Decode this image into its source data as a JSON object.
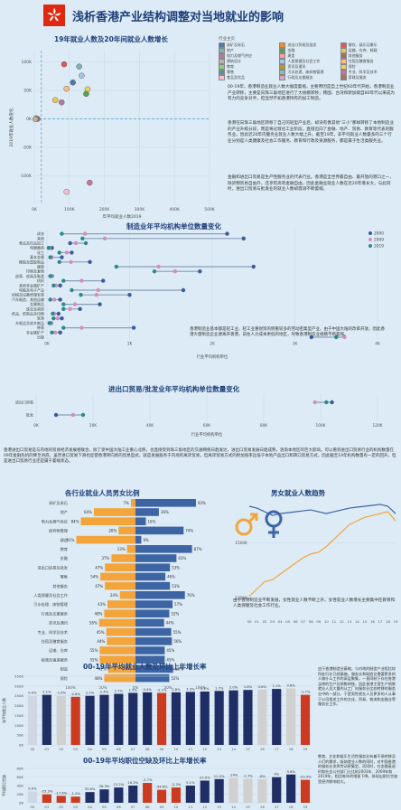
{
  "page": {
    "title": "浅析香港产业结构调整对当地就业的影响"
  },
  "sections": {
    "scatter": {
      "title": "19年就业人数及20年间就业人数增长"
    },
    "mfg": {
      "title": "制造业年平均机构单位数量变化"
    },
    "trade": {
      "title": "进出口贸易/批发业年平均机构单位数量变化"
    },
    "gender_bar": {
      "title": "各行业就业人员男女比例"
    },
    "male_trend": {
      "title": "男女就业人数趋势"
    },
    "employment": {
      "title": "00-19年平均就业人数及环比上年增长率"
    },
    "vacancy": {
      "title": "00-19年平均职位空缺及环比上年增长率"
    }
  },
  "texts": {
    "p1": "00-19年，香港制造业就业人数大幅度萎缩，主要原因是自上世纪60年代开始，香港制造业产业转移，主要是向珠三角地区进行了大规模转移；韩国、台湾和新加坡自80年代以来成为有力的竞争对手，但显然不如香港持有的加工制造。",
    "p2": "香港在向珠三角地区转移了自己的轻型产业后，却没有像其他“三小”那样转移了本地制造业的产业升级分段，而是将过渡化工业阶段，直接迈向了金融、地产、贸易、教育等代表的服务业。因此近20年内服务业就业人数大幅上升。截至19年，非平均就业人数最多的三个行业分别是人类健康及社会工作服务、教育和行政及资源服务，都是属于生活类服务业。",
    "p3": "金融和进出口贸易是生产性服务业的代表行业。香港是全世界最自由、最开放的港口之一，除货物贸易自由外，还享有高有金融自由，因此金融业就业人数在近20年增长大，与此同时，进出口贸易与批发业的就业人数却骤减不断萎缩。",
    "p4": "香港制造业基本都是轻工业，轻工业重财贸的侧重较多的劳动密集型产业。由于中国大陆的改革开放，因此香港大量制造企业便离开香港，前往人力成本更低的地区，导致香港制造业规模不断萎缩。",
    "p5": "香港进出口贸易是与内地的贸易经济发展相联合，除了受中国大陆工业重心北移，也直接受到珠三角地区的交通网络日趋发达，进出口贸易发展日趋成熟，逐渐本地区的巨大影响。可以看到进出口贸易行业的机构数量在09年金融危机的降至谷底，虽然进口贸易下滑也促使香港转向新的贸易型式，就是发展服务于内地的离岸贸易，但离岸贸易方式的附加值率远低于本地产品出口和转口贸易方式，因此截至19年机构数量有一定的回升，但是进出口贸易行业还是属于萎缩状态。",
    "p6": "由于香港制造业不断发展，女性就业人数不断上升。女性就业人数增长主要集中在教育和人类保健及社会工作行业。",
    "p7": "由于香港制造业萎缩，与内地的制造产业相比较所处行业已经萎缩，服务业和制造业需要更多的人做什么工作的高层聚集，一直同制下存在香港当地的生产及销售转移，因此香港主营生产销售就业人员大量的从工厂向服务业比较转移的服务业中的一部分，于是男性就业人员更多的人从事于公司相关工作的文化、贸易、物流和金融业等服务业工作。",
    "p8": "教育、文化和娱乐生活性服务业有着不易转移及人们的需求，吸纳就业人数的同时，对中国香港的服务业发挥劳动密集型，而同时，在金融衰退时和社会公共部门占比的2003年、2009年和2019年，相比每年的增速下降，体现出职位空缺受经济影响较大。"
  },
  "scatter_legend": {
    "title": "行业主页",
    "items": [
      {
        "label": "采矿及采石",
        "color": "#4e79a7"
      },
      {
        "label": "进出口贸易及批发",
        "color": "#f28e2b"
      },
      {
        "label": "餐饮、娱乐及康乐",
        "color": "#e15759"
      },
      {
        "label": "地产",
        "color": "#76b7b2"
      },
      {
        "label": "金融",
        "color": "#59a14f"
      },
      {
        "label": "运输、仓库、邮政",
        "color": "#edc948"
      },
      {
        "label": "电力及燃气供应",
        "color": "#b07aa1"
      },
      {
        "label": "建造",
        "color": "#ff9da7"
      },
      {
        "label": "其他服务",
        "color": "#9c755f"
      },
      {
        "label": "建筑设计",
        "color": "#bab0ac"
      },
      {
        "label": "人类保健及社会工作",
        "color": "#a0cbe8"
      },
      {
        "label": "住宿及膳食服务",
        "color": "#ffbe7d"
      },
      {
        "label": "教育",
        "color": "#8cd17d"
      },
      {
        "label": "资讯及通讯",
        "color": "#b6992d"
      },
      {
        "label": "保险",
        "color": "#f1ce63"
      },
      {
        "label": "零售",
        "color": "#499894"
      },
      {
        "label": "污水处理、废弃物管理",
        "color": "#86bcb6"
      },
      {
        "label": "专业、科学及技术",
        "color": "#d37295"
      },
      {
        "label": "食品及饮品",
        "color": "#fabfd2"
      },
      {
        "label": "行政及支援服务",
        "color": "#d4a6c8"
      },
      {
        "label": "家政及服务",
        "color": "#9d7660"
      }
    ]
  },
  "chart_data": [
    {
      "id": "scatter",
      "type": "scatter",
      "xlabel": "年平均就业人数2019",
      "ylabel": "2019年就业人数变化",
      "xlim": [
        0,
        500000
      ],
      "ylim": [
        -150000,
        120000
      ],
      "xticks": [
        "0K",
        "100K",
        "200K",
        "300K",
        "400K",
        "500K"
      ],
      "yticks": [
        "100K",
        "50K",
        "0K",
        "-50K",
        "-100K"
      ],
      "points": [
        {
          "x": 85000,
          "y": 96000,
          "color": "#e15759"
        },
        {
          "x": 128000,
          "y": 92000,
          "color": "#76b7b2"
        },
        {
          "x": 135000,
          "y": 76000,
          "color": "#a0cbe8"
        },
        {
          "x": 110000,
          "y": 64000,
          "color": "#4e79a7"
        },
        {
          "x": 152000,
          "y": 52000,
          "color": "#f1ce63"
        },
        {
          "x": 92000,
          "y": 53000,
          "color": "#ffbe7d"
        },
        {
          "x": 148000,
          "y": 44000,
          "color": "#59a14f"
        },
        {
          "x": 60000,
          "y": 33000,
          "color": "#edc948"
        },
        {
          "x": 78000,
          "y": 29000,
          "color": "#b07aa1"
        },
        {
          "x": 5000,
          "y": 1000,
          "color": "#f28e2b"
        },
        {
          "x": 9000,
          "y": 0,
          "color": "#9c755f"
        },
        {
          "x": 3000,
          "y": -500,
          "color": "#bab0ac"
        },
        {
          "x": 158000,
          "y": -112000,
          "color": "#d37295"
        },
        {
          "x": 92000,
          "y": -128000,
          "color": "#fabfd2"
        }
      ]
    },
    {
      "id": "mfg",
      "type": "dot",
      "xlabel": "行业平均机构单位",
      "xlim": [
        0,
        4000
      ],
      "xticks": [
        "0K",
        "1K",
        "2K",
        "3K",
        "4K"
      ],
      "series": [
        {
          "name": "2000",
          "color": "#3a5a9a"
        },
        {
          "name": "2009",
          "color": "#d48fb8"
        },
        {
          "name": "2019",
          "color": "#2a8a8a"
        }
      ],
      "rows": [
        {
          "label": "成衣",
          "values": [
            2180,
            460,
            180
          ]
        },
        {
          "label": "其他",
          "values": [
            2380,
            700,
            430
          ]
        },
        {
          "label": "食品及饮品加工",
          "values": [
            280,
            350,
            470
          ]
        },
        {
          "label": "电器器具",
          "values": [
            60,
            30,
            20
          ]
        },
        {
          "label": "化工",
          "values": [
            300,
            240,
            150
          ]
        },
        {
          "label": "基本金属",
          "values": [
            180,
            60,
            40
          ]
        },
        {
          "label": "橡胶及塑胶制品",
          "values": [
            520,
            290,
            150
          ]
        },
        {
          "label": "服装",
          "values": [
            2500,
            1350,
            840
          ]
        },
        {
          "label": "印刷及复制",
          "values": [
            1850,
            1550,
            1300
          ]
        },
        {
          "label": "皮革、皮具及鞋类",
          "values": [
            60,
            50,
            40
          ]
        },
        {
          "label": "纺织",
          "values": [
            680,
            420,
            200
          ]
        },
        {
          "label": "其他非金属矿产",
          "values": [
            160,
            110,
            80
          ]
        },
        {
          "label": "电脑及电子产品",
          "values": [
            1650,
            620,
            300
          ]
        },
        {
          "label": "机械及设备修理安装",
          "values": [
            1000,
            600,
            410
          ]
        },
        {
          "label": "汽车制造、其他运输",
          "values": [
            160,
            90,
            40
          ]
        },
        {
          "label": "金属制品",
          "values": [
            640,
            340,
            200
          ]
        },
        {
          "label": "珠宝及首饰",
          "values": [
            400,
            280,
            200
          ]
        },
        {
          "label": "纸品、纸制品及印刷",
          "values": [
            140,
            90,
            70
          ]
        },
        {
          "label": "家具",
          "values": [
            180,
            130,
            80
          ]
        },
        {
          "label": "木制品及软木制品",
          "values": [
            50,
            40,
            30
          ]
        },
        {
          "label": "钟表",
          "values": [
            1050,
            420,
            200
          ]
        },
        {
          "label": "非金属矿产",
          "values": [
            160,
            100,
            60
          ]
        },
        {
          "label": "出版",
          "values": [
            3200,
            3600,
            3500
          ]
        }
      ]
    },
    {
      "id": "trade",
      "type": "dot",
      "xlabel": "行业平均机构单位",
      "xlim": [
        0,
        120000
      ],
      "xticks": [
        "0K",
        "20K",
        "40K",
        "60K",
        "80K",
        "100K",
        "120K"
      ],
      "rows": [
        {
          "label": "进出口贸易",
          "values": [
            104000,
            98000,
            102000
          ]
        },
        {
          "label": "批发",
          "values": [
            7000,
            13000,
            16500
          ]
        }
      ]
    },
    {
      "id": "gender_bar",
      "type": "bar",
      "series": [
        {
          "name": "女",
          "color": "#f3a43a"
        },
        {
          "name": "男",
          "color": "#3e65a3"
        }
      ],
      "rows": [
        {
          "label": "采矿及采石",
          "female": 7,
          "male": 93
        },
        {
          "label": "地产",
          "female": 64,
          "male": 36
        },
        {
          "label": "电力及燃气供应",
          "female": 84,
          "male": 16
        },
        {
          "label": "废弃物管理",
          "female": 26,
          "male": 74
        },
        {
          "label": "建造",
          "female": 91,
          "male": 9
        },
        {
          "label": "教育",
          "female": 13,
          "male": 87
        },
        {
          "label": "金融",
          "female": 37,
          "male": 63
        },
        {
          "label": "进出口贸易及批发",
          "female": 47,
          "male": 53
        },
        {
          "label": "零售",
          "female": 54,
          "male": 46
        },
        {
          "label": "其他服务",
          "female": 47,
          "male": 53
        },
        {
          "label": "人类保健及社会工作",
          "female": 24,
          "male": 76
        },
        {
          "label": "污水处理、废物管理",
          "female": 43,
          "male": 57
        },
        {
          "label": "行政及支援服务",
          "female": 48,
          "male": 52
        },
        {
          "label": "资讯及通讯",
          "female": 56,
          "male": 44
        },
        {
          "label": "专业、科学及技术",
          "female": 45,
          "male": 55
        },
        {
          "label": "住宿及膳食服务",
          "female": 44,
          "male": 56
        },
        {
          "label": "运输、仓库",
          "female": 55,
          "male": 45
        },
        {
          "label": "邮政及速递服务",
          "female": 55,
          "male": 45
        },
        {
          "label": "制造",
          "female": 42,
          "male": 58
        },
        {
          "label": "保险",
          "female": 48,
          "male": 52
        }
      ],
      "xlabels": [
        "100%",
        "50%",
        "0%",
        "50%",
        "100%"
      ]
    },
    {
      "id": "male_trend",
      "type": "line",
      "x": [
        "00",
        "01",
        "02",
        "03",
        "04",
        "05",
        "06",
        "07",
        "08",
        "09",
        "10",
        "11",
        "12",
        "13",
        "14",
        "15",
        "16",
        "17",
        "18",
        "19"
      ],
      "yticks": [
        "1500K",
        "1200K"
      ],
      "ylim": [
        1100000,
        1700000
      ],
      "series": [
        {
          "name": "男",
          "color": "#3e65a3",
          "values": [
            1700000,
            1690000,
            1670000,
            1650000,
            1660000,
            1665000,
            1670000,
            1675000,
            1680000,
            1670000,
            1660000,
            1670000,
            1680000,
            1690000,
            1695000,
            1700000,
            1705000,
            1710000,
            1700000,
            1660000
          ]
        },
        {
          "name": "女",
          "color": "#f3a43a",
          "values": [
            1210000,
            1250000,
            1290000,
            1300000,
            1330000,
            1360000,
            1390000,
            1420000,
            1440000,
            1450000,
            1480000,
            1520000,
            1560000,
            1600000,
            1620000,
            1640000,
            1650000,
            1660000,
            1670000,
            1620000
          ]
        }
      ]
    },
    {
      "id": "employment",
      "type": "bar",
      "ylabel": "年平均就业人数",
      "ylim": [
        0,
        350000
      ],
      "yticks": [
        "350K",
        "300K",
        "250K",
        "200K",
        "150K",
        "100K",
        "50K",
        "0K"
      ],
      "categories": [
        "00",
        "01",
        "02",
        "03",
        "04",
        "05",
        "06",
        "07",
        "08",
        "09",
        "10",
        "11",
        "12",
        "13",
        "14",
        "15",
        "16",
        "17",
        "18",
        "19"
      ],
      "values": [
        250000,
        255000,
        250000,
        245000,
        250000,
        255000,
        260000,
        265000,
        268000,
        265000,
        268000,
        270000,
        272000,
        275000,
        278000,
        280000,
        282000,
        285000,
        288000,
        255000
      ],
      "rates": [
        "0.0%",
        "2.1%",
        "-1.6%",
        "-2.6%",
        "2.2%",
        "2.4%",
        "2.7%",
        "1.5%",
        "0.4%",
        "-2.1%",
        "2.8%",
        "3.3%",
        "2.1%",
        "1.7%",
        "2.0%",
        "1.6%",
        "0.8%",
        "1.1%",
        "0.8%",
        "-1.7%"
      ],
      "colors": [
        "#cfd6e4",
        "#1f2e64",
        "#d0d0d0",
        "#cc3a1f",
        "#1f2e64",
        "#1f2e64",
        "#1f2e64",
        "#1f2e64",
        "#1f2e64",
        "#cc3a1f",
        "#1f2e64",
        "#1f2e64",
        "#1f2e64",
        "#1f2e64",
        "#1f2e64",
        "#1f2e64",
        "#d0d0d0",
        "#1f2e64",
        "#d0d0d0",
        "#cc3a1f"
      ]
    },
    {
      "id": "vacancy",
      "type": "bar",
      "ylabel": "平均职位空缺",
      "ylim": [
        0,
        90000
      ],
      "yticks": [
        "80K",
        "60K",
        "40K",
        "20K",
        "0K"
      ],
      "categories": [
        "00",
        "01",
        "02",
        "03",
        "04",
        "05",
        "06",
        "07",
        "08",
        "09",
        "10",
        "11",
        "12",
        "13",
        "14",
        "15",
        "16",
        "17",
        "18",
        "19"
      ],
      "values": [
        30000,
        22000,
        18000,
        16000,
        28000,
        35000,
        40000,
        45000,
        52000,
        34000,
        40000,
        45000,
        58000,
        62000,
        65000,
        63000,
        62000,
        67000,
        74000,
        60000
      ],
      "rates": [
        "0.0%",
        "-25.3%",
        "-17.6%",
        "-1.2%",
        "33.6%",
        "26.3%",
        "12.2%",
        "16.3%",
        "-2.7%",
        "-34.6%",
        "-2.3%",
        "5.1%",
        "23.5%",
        "11.5%",
        "-14%",
        "-1.7%",
        "-8%",
        "4%",
        "9.6%",
        "-23.3%"
      ],
      "colors": [
        "#cfd6e4",
        "#cc3a1f",
        "#cc3a1f",
        "#cc3a1f",
        "#1f2e64",
        "#1f2e64",
        "#1f2e64",
        "#1f2e64",
        "#cc3a1f",
        "#cc3a1f",
        "#cc3a1f",
        "#1f2e64",
        "#1f2e64",
        "#1f2e64",
        "#d0d0d0",
        "#d0d0d0",
        "#d0d0d0",
        "#1f2e64",
        "#1f2e64",
        "#cc3a1f"
      ]
    }
  ]
}
